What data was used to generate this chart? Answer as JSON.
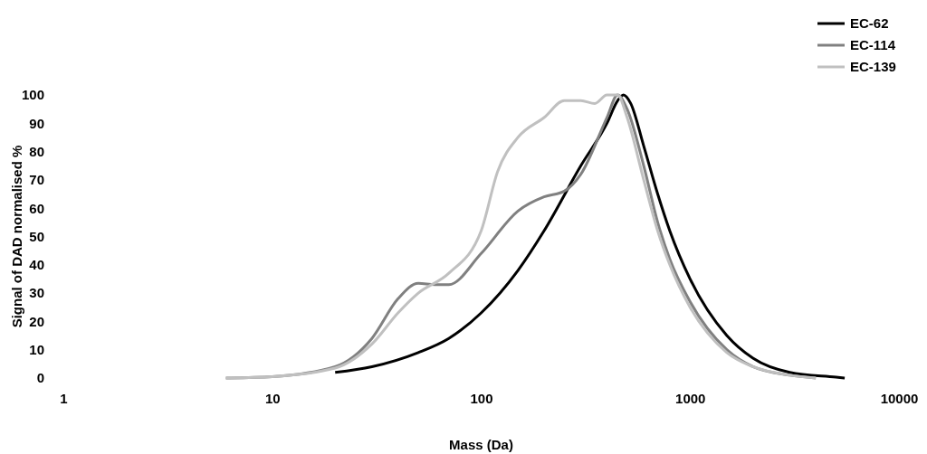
{
  "chart_data": {
    "type": "line",
    "xlabel": "Mass (Da)",
    "ylabel": "Signal of DAD normalised %",
    "log": "x",
    "xlim": [
      1,
      10000
    ],
    "xticks": [
      1,
      10,
      100,
      1000,
      10000
    ],
    "ylim": [
      0,
      100
    ],
    "yticks": [
      0,
      10,
      20,
      30,
      40,
      50,
      60,
      70,
      80,
      90,
      100
    ],
    "grid": false,
    "legend": "top right",
    "marker": "none",
    "line_style": "solid",
    "series": [
      {
        "name": "EC-62",
        "color": "#000000",
        "x": [
          20,
          30,
          50,
          70,
          100,
          150,
          200,
          300,
          400,
          450,
          480,
          520,
          600,
          700,
          800,
          1000,
          1500,
          2000,
          3000,
          5000,
          5500
        ],
        "values": [
          2,
          4,
          9,
          14,
          23,
          38,
          52,
          75,
          90,
          98,
          100,
          97,
          82,
          65,
          52,
          35,
          15,
          7,
          2,
          0.3,
          0
        ]
      },
      {
        "name": "EC-114",
        "color": "#808080",
        "x": [
          6,
          10,
          20,
          30,
          40,
          50,
          60,
          70,
          100,
          150,
          200,
          250,
          300,
          400,
          450,
          500,
          600,
          700,
          800,
          1000,
          1500,
          2000,
          3000,
          4000
        ],
        "values": [
          0,
          0.5,
          4,
          14,
          28,
          33.5,
          33,
          33,
          44,
          59,
          64,
          66,
          72,
          92,
          100,
          95,
          75,
          55,
          42,
          27,
          10,
          4,
          1,
          0
        ]
      },
      {
        "name": "EC-139",
        "color": "#c0c0c0",
        "x": [
          6,
          10,
          20,
          30,
          40,
          50,
          70,
          100,
          120,
          150,
          200,
          250,
          300,
          350,
          400,
          450,
          500,
          600,
          700,
          800,
          1000,
          1500,
          2000,
          3000,
          4000
        ],
        "values": [
          0,
          0.5,
          3.5,
          12,
          23,
          30,
          37,
          52,
          73,
          85,
          92,
          98,
          98,
          97,
          100,
          100,
          92,
          70,
          52,
          40,
          25,
          9,
          4,
          1,
          0
        ]
      }
    ]
  }
}
